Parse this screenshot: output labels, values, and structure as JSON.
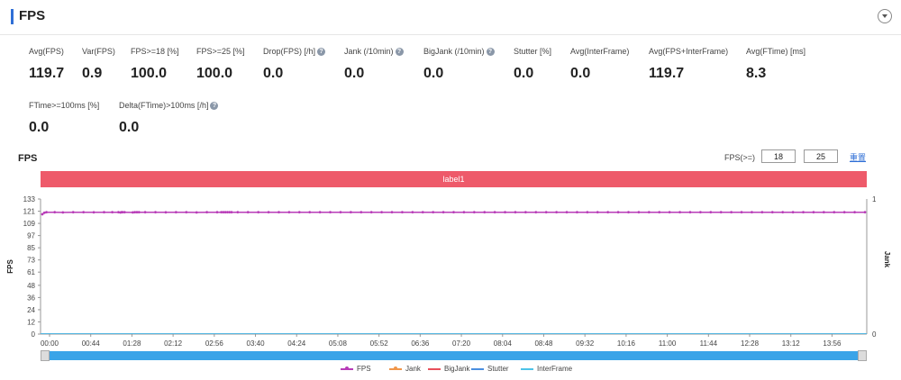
{
  "header": {
    "title": "FPS"
  },
  "metrics": [
    {
      "label": "Avg(FPS)",
      "value": "119.7",
      "help": false
    },
    {
      "label": "Var(FPS)",
      "value": "0.9",
      "help": false
    },
    {
      "label": "FPS>=18 [%]",
      "value": "100.0",
      "help": false
    },
    {
      "label": "FPS>=25 [%]",
      "value": "100.0",
      "help": false
    },
    {
      "label": "Drop(FPS) [/h]",
      "value": "0.0",
      "help": true
    },
    {
      "label": "Jank (/10min)",
      "value": "0.0",
      "help": true
    },
    {
      "label": "BigJank (/10min)",
      "value": "0.0",
      "help": true
    },
    {
      "label": "Stutter [%]",
      "value": "0.0",
      "help": false
    },
    {
      "label": "Avg(InterFrame)",
      "value": "0.0",
      "help": false
    },
    {
      "label": "Avg(FPS+InterFrame)",
      "value": "119.7",
      "help": false
    },
    {
      "label": "Avg(FTime) [ms]",
      "value": "8.3",
      "help": false
    },
    {
      "label": "FTime>=100ms [%]",
      "value": "0.0",
      "help": false
    },
    {
      "label": "Delta(FTime)>100ms [/h]",
      "value": "0.0",
      "help": true
    }
  ],
  "controls": {
    "fps_ge_label": "FPS(>=)",
    "fps_ge_1": "18",
    "fps_ge_2": "25",
    "reset_label": "重置"
  },
  "chart_data": {
    "type": "line",
    "title": "FPS",
    "label_band": "label1",
    "ylabel_left": "FPS",
    "ylabel_right": "Jank",
    "y_ticks_left": [
      0,
      12,
      24,
      36,
      48,
      61,
      73,
      85,
      97,
      109,
      121,
      133
    ],
    "ylim_left": [
      0,
      133
    ],
    "y_ticks_right": [
      0,
      1
    ],
    "ylim_right": [
      0,
      1
    ],
    "x_ticks": [
      "00:00",
      "00:44",
      "01:28",
      "02:12",
      "02:56",
      "03:40",
      "04:24",
      "05:08",
      "05:52",
      "06:36",
      "07:20",
      "08:04",
      "08:48",
      "09:32",
      "10:16",
      "11:00",
      "11:44",
      "12:28",
      "13:12",
      "13:56"
    ],
    "series": [
      {
        "name": "FPS",
        "color": "#b83cb8",
        "x": [
          0,
          10,
          20,
          60,
          100,
          150,
          200,
          250,
          300,
          340,
          370,
          380,
          385,
          390,
          400,
          440,
          450,
          460,
          470,
          500,
          550,
          600,
          650,
          700,
          750,
          800,
          850,
          870,
          880,
          890,
          900,
          910,
          920,
          950,
          1000,
          1050,
          1100,
          1150,
          1200,
          1250,
          1300,
          1350,
          1400,
          1450,
          1500,
          1550,
          1600,
          1650,
          1700,
          1750,
          1800,
          1850,
          1900,
          1950,
          2000,
          2050,
          2100,
          2150,
          2200,
          2250,
          2300,
          2350,
          2400,
          2450,
          2500,
          2550,
          2600,
          2650,
          2700,
          2750,
          2800,
          2850,
          2900,
          2950,
          3000,
          3050,
          3100,
          3150,
          3200,
          3250,
          3300,
          3350,
          3400,
          3450,
          3500,
          3550,
          3600,
          3650,
          3700,
          3750,
          3800,
          3850,
          3900,
          3950,
          4000
        ],
        "values": [
          118,
          119.5,
          120,
          120,
          119.8,
          120,
          120,
          119.9,
          120,
          120,
          120,
          119.7,
          120,
          120,
          120,
          119.8,
          120,
          120,
          120,
          120,
          120,
          119.9,
          120,
          120,
          119.8,
          120,
          120,
          120,
          120,
          120,
          120,
          120,
          120,
          120,
          120,
          120,
          120,
          120,
          120,
          120,
          120,
          120,
          120,
          120,
          120,
          120,
          120,
          120,
          120,
          120,
          120,
          120,
          120,
          120,
          120,
          120,
          120,
          120,
          120,
          120,
          120,
          120,
          120,
          120,
          120,
          120,
          120,
          120,
          120,
          120,
          120,
          120,
          120,
          120,
          120,
          120,
          120,
          120,
          120,
          120,
          120,
          120,
          120,
          120,
          120,
          120,
          120,
          120,
          120,
          120,
          120,
          120,
          120,
          120,
          120
        ]
      },
      {
        "name": "Jank",
        "color": "#f0964a",
        "values": [
          0
        ]
      },
      {
        "name": "BigJank",
        "color": "#e8505b",
        "values": [
          0
        ]
      },
      {
        "name": "Stutter",
        "color": "#4a8fe0",
        "values": [
          0
        ]
      },
      {
        "name": "InterFrame",
        "color": "#4dc3e8",
        "values": [
          0
        ]
      }
    ]
  }
}
